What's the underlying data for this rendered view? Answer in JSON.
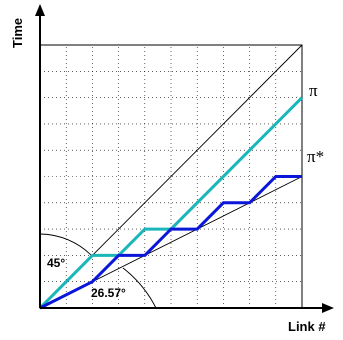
{
  "axes": {
    "x_label": "Link #",
    "y_label": "Time"
  },
  "reference_lines": [
    {
      "angle_label": "45°",
      "slope": 1.0
    },
    {
      "angle_label": "26.57°",
      "slope": 0.5
    }
  ],
  "series": [
    {
      "name": "π",
      "color": "#1ab6ba",
      "points": [
        [
          0,
          0
        ],
        [
          1,
          1
        ],
        [
          2,
          2
        ],
        [
          3,
          2
        ],
        [
          4,
          3
        ],
        [
          5,
          3
        ],
        [
          10,
          8
        ]
      ]
    },
    {
      "name": "π*",
      "color": "#0a16d8",
      "points": [
        [
          0,
          0
        ],
        [
          2,
          1
        ],
        [
          3,
          2
        ],
        [
          4,
          2
        ],
        [
          5,
          3
        ],
        [
          6,
          3
        ],
        [
          7,
          4
        ],
        [
          8,
          4
        ],
        [
          9,
          5
        ],
        [
          10,
          5
        ]
      ]
    }
  ],
  "grid": {
    "cells": 10,
    "style": "dotted"
  }
}
